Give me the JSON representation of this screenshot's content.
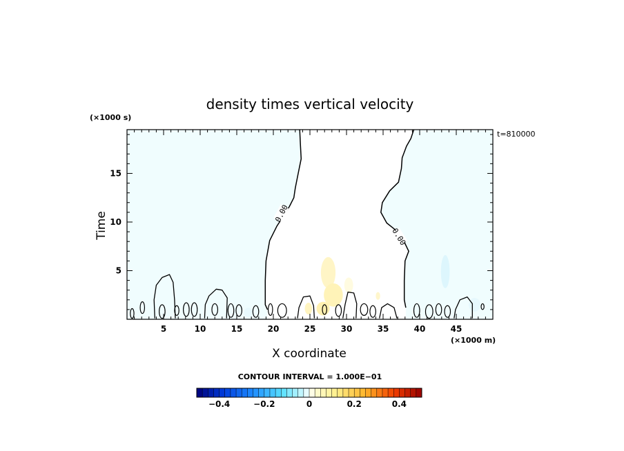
{
  "chart_data": {
    "type": "contour",
    "title": "density times vertical velocity",
    "xlabel": "X coordinate",
    "ylabel": "Time",
    "x_unit": "(×1000 m)",
    "y_unit": "(×1000 s)",
    "xlim": [
      0,
      50
    ],
    "ylim": [
      0,
      19.5
    ],
    "x_ticks": [
      5,
      10,
      15,
      20,
      25,
      30,
      35,
      40,
      45
    ],
    "y_ticks": [
      5,
      10,
      15
    ],
    "timestamp": "t=810000",
    "contour_interval_text": "CONTOUR INTERVAL = 1.000E−01",
    "contour_labels": [
      {
        "text": "0.00",
        "x": 21.1,
        "y": 10.9
      },
      {
        "text": "0.00",
        "x": 37.2,
        "y": 8.5
      }
    ],
    "zero_contours": [
      [
        [
          23.6,
          19.5
        ],
        [
          23.7,
          18.0
        ],
        [
          23.8,
          16.5
        ],
        [
          23.4,
          15.0
        ],
        [
          23.0,
          13.5
        ],
        [
          22.8,
          12.5
        ],
        [
          22.2,
          11.6
        ],
        [
          21.2,
          10.4
        ],
        [
          20.5,
          9.6
        ],
        [
          19.5,
          8.1
        ],
        [
          19.0,
          6.0
        ],
        [
          18.9,
          4.0
        ],
        [
          18.9,
          1.5
        ],
        [
          19.2,
          1.0
        ]
      ],
      [
        [
          39.2,
          19.5
        ],
        [
          38.8,
          18.6
        ],
        [
          38.2,
          17.8
        ],
        [
          37.6,
          16.6
        ],
        [
          37.5,
          15.5
        ],
        [
          37.1,
          14.1
        ],
        [
          35.9,
          13.2
        ],
        [
          34.9,
          12.0
        ],
        [
          34.7,
          11.0
        ],
        [
          35.5,
          9.9
        ],
        [
          36.5,
          9.3
        ],
        [
          37.6,
          8.4
        ],
        [
          38.5,
          7.0
        ],
        [
          38.0,
          6.0
        ],
        [
          37.9,
          4.0
        ],
        [
          37.9,
          2.0
        ],
        [
          38.1,
          1.2
        ]
      ]
    ],
    "colorbar": {
      "min": -0.5,
      "max": 0.5,
      "step": 0.05,
      "tick_values": [
        -0.4,
        -0.2,
        0,
        0.2,
        0.4
      ],
      "tick_labels": [
        "−0.4",
        "−0.2",
        "0",
        "0.2",
        "0.4"
      ]
    },
    "field_fill_color": "#f0fdfe"
  }
}
